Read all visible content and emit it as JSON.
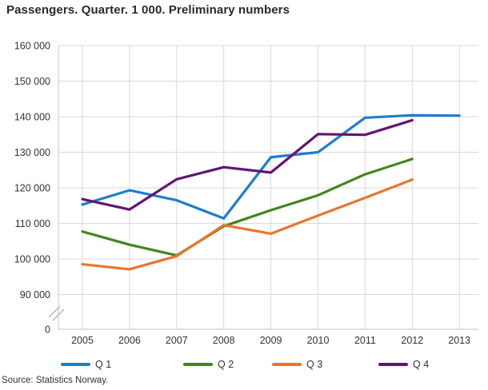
{
  "title": "Passengers. Quarter. 1 000. Preliminary numbers",
  "source": "Source: Statistics Norway.",
  "colors": {
    "grid": "#d9d9d9",
    "axis": "#c6c6c6",
    "break_mark": "#b5b5b5",
    "tick_text": "#333333",
    "title_text": "#2a2a2a"
  },
  "chart_data": {
    "type": "line",
    "title": "Passengers. Quarter. 1 000. Preliminary numbers",
    "xlabel": "",
    "ylabel": "",
    "grid": true,
    "legend_position": "bottom",
    "axis_break": true,
    "ylim": [
      90000,
      160000
    ],
    "y_tick_labels": [
      "160 000",
      "150 000",
      "140 000",
      "130 000",
      "120 000",
      "110 000",
      "100 000",
      "90 000"
    ],
    "y_zero_label": "0",
    "x": [
      2005,
      2006,
      2007,
      2008,
      2009,
      2010,
      2011,
      2012,
      2013
    ],
    "x_tick_labels": [
      "2005",
      "2006",
      "2007",
      "2008",
      "2009",
      "2010",
      "2011",
      "2012",
      "2013"
    ],
    "series": [
      {
        "name": "Q 1",
        "color": "#1d7dd1",
        "values": [
          115300,
          119300,
          116500,
          111400,
          128600,
          130000,
          139700,
          140400,
          140300
        ]
      },
      {
        "name": "Q 2",
        "color": "#43861d",
        "values": [
          107700,
          104000,
          101000,
          109200,
          113700,
          117900,
          123800,
          128100,
          null
        ]
      },
      {
        "name": "Q 3",
        "color": "#e8762c",
        "values": [
          98500,
          97100,
          100800,
          109500,
          107100,
          112200,
          117200,
          122300,
          null
        ]
      },
      {
        "name": "Q 4",
        "color": "#621478",
        "values": [
          116800,
          113900,
          122400,
          125800,
          124300,
          135100,
          134900,
          139000,
          null
        ]
      }
    ]
  },
  "legend": {
    "items": [
      "Q 1",
      "Q 2",
      "Q 3",
      "Q 4"
    ]
  }
}
